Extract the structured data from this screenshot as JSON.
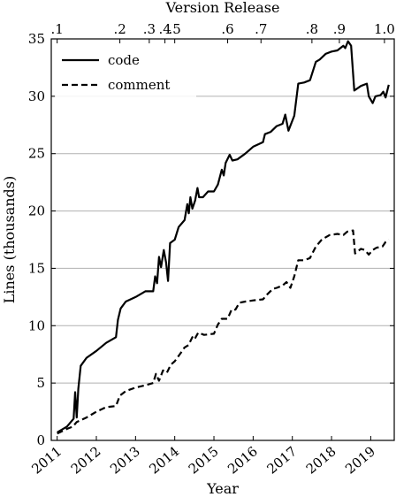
{
  "chart_data": {
    "type": "line",
    "xlabel": "Year",
    "ylabel": "Lines (thousands)",
    "top_axis_label": "Version Release",
    "xlim": [
      2010.85,
      2019.6
    ],
    "ylim": [
      0,
      35
    ],
    "yticks": [
      0,
      5,
      10,
      15,
      20,
      25,
      30,
      35
    ],
    "xticks": [
      2011,
      2012,
      2013,
      2014,
      2015,
      2016,
      2017,
      2018,
      2019
    ],
    "grid": "horizontal",
    "legend_position": "top-left",
    "top_ticks": [
      {
        "label": ".1",
        "x": 2011.0
      },
      {
        "label": ".2",
        "x": 2012.6
      },
      {
        "label": ".3",
        "x": 2013.35
      },
      {
        "label": ".4",
        "x": 2013.75
      },
      {
        "label": ".5",
        "x": 2014.0
      },
      {
        "label": ".6",
        "x": 2015.35
      },
      {
        "label": ".7",
        "x": 2016.2
      },
      {
        "label": ".8",
        "x": 2017.5
      },
      {
        "label": ".9",
        "x": 2018.2
      },
      {
        "label": "1.0",
        "x": 2019.35
      }
    ],
    "series": [
      {
        "name": "code",
        "style": "solid",
        "points": [
          [
            2011.0,
            0.7
          ],
          [
            2011.25,
            1.2
          ],
          [
            2011.42,
            1.9
          ],
          [
            2011.46,
            4.2
          ],
          [
            2011.5,
            2.0
          ],
          [
            2011.54,
            4.5
          ],
          [
            2011.6,
            6.5
          ],
          [
            2011.75,
            7.2
          ],
          [
            2012.0,
            7.8
          ],
          [
            2012.25,
            8.5
          ],
          [
            2012.5,
            9.0
          ],
          [
            2012.55,
            10.5
          ],
          [
            2012.62,
            11.5
          ],
          [
            2012.75,
            12.1
          ],
          [
            2013.0,
            12.5
          ],
          [
            2013.25,
            13.0
          ],
          [
            2013.45,
            13.0
          ],
          [
            2013.5,
            14.3
          ],
          [
            2013.55,
            13.7
          ],
          [
            2013.6,
            16.0
          ],
          [
            2013.65,
            15.1
          ],
          [
            2013.72,
            16.6
          ],
          [
            2013.78,
            15.5
          ],
          [
            2013.83,
            13.9
          ],
          [
            2013.88,
            17.2
          ],
          [
            2014.0,
            17.5
          ],
          [
            2014.1,
            18.6
          ],
          [
            2014.25,
            19.2
          ],
          [
            2014.32,
            20.6
          ],
          [
            2014.36,
            19.8
          ],
          [
            2014.4,
            21.2
          ],
          [
            2014.45,
            20.2
          ],
          [
            2014.52,
            20.9
          ],
          [
            2014.58,
            22.0
          ],
          [
            2014.62,
            21.2
          ],
          [
            2014.72,
            21.2
          ],
          [
            2014.85,
            21.7
          ],
          [
            2015.0,
            21.7
          ],
          [
            2015.1,
            22.3
          ],
          [
            2015.2,
            23.6
          ],
          [
            2015.25,
            23.1
          ],
          [
            2015.3,
            24.2
          ],
          [
            2015.4,
            24.9
          ],
          [
            2015.47,
            24.4
          ],
          [
            2015.6,
            24.5
          ],
          [
            2015.8,
            25.0
          ],
          [
            2016.0,
            25.6
          ],
          [
            2016.25,
            26.0
          ],
          [
            2016.3,
            26.7
          ],
          [
            2016.45,
            26.9
          ],
          [
            2016.6,
            27.4
          ],
          [
            2016.75,
            27.6
          ],
          [
            2016.82,
            28.4
          ],
          [
            2016.9,
            27.0
          ],
          [
            2017.05,
            28.3
          ],
          [
            2017.15,
            31.1
          ],
          [
            2017.3,
            31.2
          ],
          [
            2017.45,
            31.4
          ],
          [
            2017.6,
            33.0
          ],
          [
            2017.7,
            33.2
          ],
          [
            2017.85,
            33.7
          ],
          [
            2018.0,
            33.9
          ],
          [
            2018.15,
            34.0
          ],
          [
            2018.3,
            34.4
          ],
          [
            2018.35,
            34.2
          ],
          [
            2018.42,
            34.8
          ],
          [
            2018.5,
            34.4
          ],
          [
            2018.58,
            30.5
          ],
          [
            2018.75,
            30.9
          ],
          [
            2018.9,
            31.1
          ],
          [
            2018.95,
            30.0
          ],
          [
            2019.05,
            29.4
          ],
          [
            2019.12,
            30.0
          ],
          [
            2019.25,
            30.1
          ],
          [
            2019.32,
            30.4
          ],
          [
            2019.38,
            29.9
          ],
          [
            2019.46,
            31.0
          ]
        ]
      },
      {
        "name": "comment",
        "style": "dashed",
        "points": [
          [
            2011.0,
            0.6
          ],
          [
            2011.25,
            1.0
          ],
          [
            2011.4,
            1.2
          ],
          [
            2011.5,
            1.6
          ],
          [
            2011.75,
            2.0
          ],
          [
            2012.0,
            2.5
          ],
          [
            2012.25,
            2.9
          ],
          [
            2012.5,
            3.0
          ],
          [
            2012.6,
            3.9
          ],
          [
            2012.75,
            4.3
          ],
          [
            2013.0,
            4.6
          ],
          [
            2013.25,
            4.8
          ],
          [
            2013.45,
            5.0
          ],
          [
            2013.52,
            5.8
          ],
          [
            2013.6,
            5.2
          ],
          [
            2013.7,
            6.1
          ],
          [
            2013.8,
            5.9
          ],
          [
            2013.9,
            6.6
          ],
          [
            2014.0,
            6.9
          ],
          [
            2014.15,
            7.6
          ],
          [
            2014.25,
            8.1
          ],
          [
            2014.35,
            8.3
          ],
          [
            2014.45,
            9.0
          ],
          [
            2014.5,
            8.8
          ],
          [
            2014.6,
            9.4
          ],
          [
            2014.75,
            9.2
          ],
          [
            2015.0,
            9.3
          ],
          [
            2015.1,
            10.1
          ],
          [
            2015.2,
            10.6
          ],
          [
            2015.35,
            10.6
          ],
          [
            2015.45,
            11.4
          ],
          [
            2015.55,
            11.4
          ],
          [
            2015.65,
            12.0
          ],
          [
            2015.8,
            12.1
          ],
          [
            2016.0,
            12.2
          ],
          [
            2016.25,
            12.3
          ],
          [
            2016.35,
            12.7
          ],
          [
            2016.5,
            13.2
          ],
          [
            2016.6,
            13.3
          ],
          [
            2016.75,
            13.5
          ],
          [
            2016.85,
            13.8
          ],
          [
            2016.95,
            13.3
          ],
          [
            2017.05,
            14.3
          ],
          [
            2017.15,
            15.7
          ],
          [
            2017.3,
            15.7
          ],
          [
            2017.45,
            15.9
          ],
          [
            2017.6,
            16.9
          ],
          [
            2017.75,
            17.5
          ],
          [
            2017.95,
            17.9
          ],
          [
            2018.15,
            18.0
          ],
          [
            2018.3,
            17.9
          ],
          [
            2018.4,
            18.2
          ],
          [
            2018.55,
            18.3
          ],
          [
            2018.6,
            16.3
          ],
          [
            2018.75,
            16.7
          ],
          [
            2018.85,
            16.6
          ],
          [
            2018.95,
            16.2
          ],
          [
            2019.05,
            16.6
          ],
          [
            2019.15,
            16.8
          ],
          [
            2019.3,
            16.9
          ],
          [
            2019.38,
            17.3
          ],
          [
            2019.46,
            17.5
          ]
        ]
      }
    ]
  }
}
